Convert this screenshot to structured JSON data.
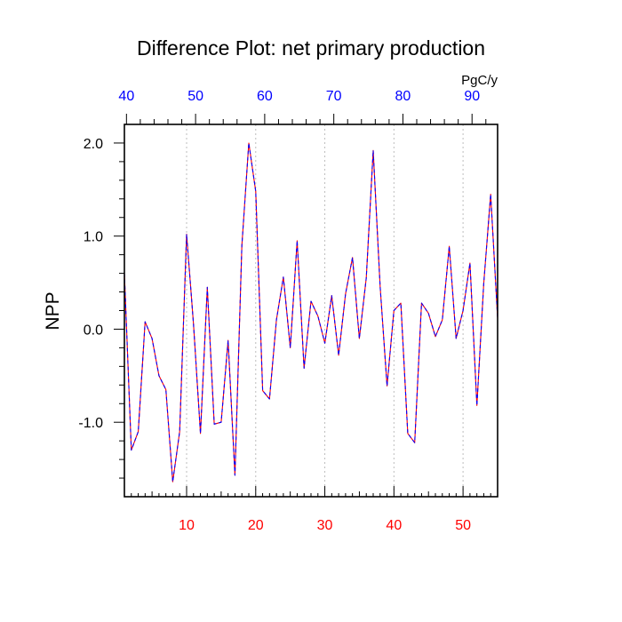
{
  "chart_data": {
    "type": "line",
    "title": "Difference Plot: net primary production",
    "ylabel": "NPP",
    "top_axis_units": "PgC/y",
    "xlim": [
      1,
      55
    ],
    "ylim": [
      -1.8,
      2.2
    ],
    "bottom_ticks": [
      10,
      20,
      30,
      40,
      50
    ],
    "bottom_tick_labels": [
      "10",
      "20",
      "30",
      "40",
      "50"
    ],
    "bottom_tick_color": "#ff0000",
    "top_ticks": [
      40,
      50,
      60,
      70,
      80,
      90
    ],
    "top_tick_labels": [
      "40",
      "50",
      "60",
      "70",
      "80",
      "90"
    ],
    "top_tick_color": "#0000ff",
    "top_axis_mapping": {
      "bottom": [
        1,
        55
      ],
      "top": [
        39.7,
        93.7
      ]
    },
    "y_ticks": [
      -1.0,
      0.0,
      1.0,
      2.0
    ],
    "y_tick_labels": [
      "-1.0",
      "0.0",
      "1.0",
      "2.0"
    ],
    "grid": "vertical dashed at bottom ticks",
    "series": [
      {
        "name": "red",
        "color": "#ff0000",
        "dash": "none",
        "x": [
          1,
          2,
          3,
          4,
          5,
          6,
          7,
          8,
          9,
          10,
          11,
          12,
          13,
          14,
          15,
          16,
          17,
          18,
          19,
          20,
          21,
          22,
          23,
          24,
          25,
          26,
          27,
          28,
          29,
          30,
          31,
          32,
          33,
          34,
          35,
          36,
          37,
          38,
          39,
          40,
          41,
          42,
          43,
          44,
          45,
          46,
          47,
          48,
          49,
          50,
          51,
          52,
          53,
          54,
          55
        ],
        "values": [
          0.6,
          -1.3,
          -1.1,
          0.08,
          -0.1,
          -0.5,
          -0.65,
          -1.64,
          -1.1,
          1.02,
          0.05,
          -1.12,
          0.45,
          -1.02,
          -1.0,
          -0.12,
          -1.57,
          0.9,
          2.0,
          1.48,
          -0.66,
          -0.75,
          0.1,
          0.56,
          -0.2,
          0.95,
          -0.42,
          0.3,
          0.14,
          -0.15,
          0.36,
          -0.28,
          0.38,
          0.77,
          -0.1,
          0.55,
          1.92,
          0.46,
          -0.61,
          0.2,
          0.28,
          -1.12,
          -1.22,
          0.28,
          0.17,
          -0.08,
          0.1,
          0.89,
          -0.1,
          0.2,
          0.71,
          -0.82,
          0.49,
          1.45,
          0.12
        ]
      },
      {
        "name": "blue",
        "color": "#0000ff",
        "dash": "4,3",
        "x": [
          1,
          2,
          3,
          4,
          5,
          6,
          7,
          8,
          9,
          10,
          11,
          12,
          13,
          14,
          15,
          16,
          17,
          18,
          19,
          20,
          21,
          22,
          23,
          24,
          25,
          26,
          27,
          28,
          29,
          30,
          31,
          32,
          33,
          34,
          35,
          36,
          37,
          38,
          39,
          40,
          41,
          42,
          43,
          44,
          45,
          46,
          47,
          48,
          49,
          50,
          51,
          52,
          53,
          54,
          55
        ],
        "values": [
          0.6,
          -1.3,
          -1.1,
          0.08,
          -0.1,
          -0.5,
          -0.65,
          -1.64,
          -1.1,
          1.02,
          0.05,
          -1.12,
          0.45,
          -1.02,
          -1.0,
          -0.12,
          -1.57,
          0.9,
          2.0,
          1.48,
          -0.66,
          -0.75,
          0.1,
          0.56,
          -0.2,
          0.95,
          -0.42,
          0.3,
          0.14,
          -0.15,
          0.36,
          -0.28,
          0.38,
          0.77,
          -0.1,
          0.55,
          1.92,
          0.46,
          -0.61,
          0.2,
          0.28,
          -1.12,
          -1.22,
          0.28,
          0.17,
          -0.08,
          0.1,
          0.89,
          -0.1,
          0.2,
          0.71,
          -0.82,
          0.49,
          1.45,
          0.12
        ]
      }
    ]
  }
}
